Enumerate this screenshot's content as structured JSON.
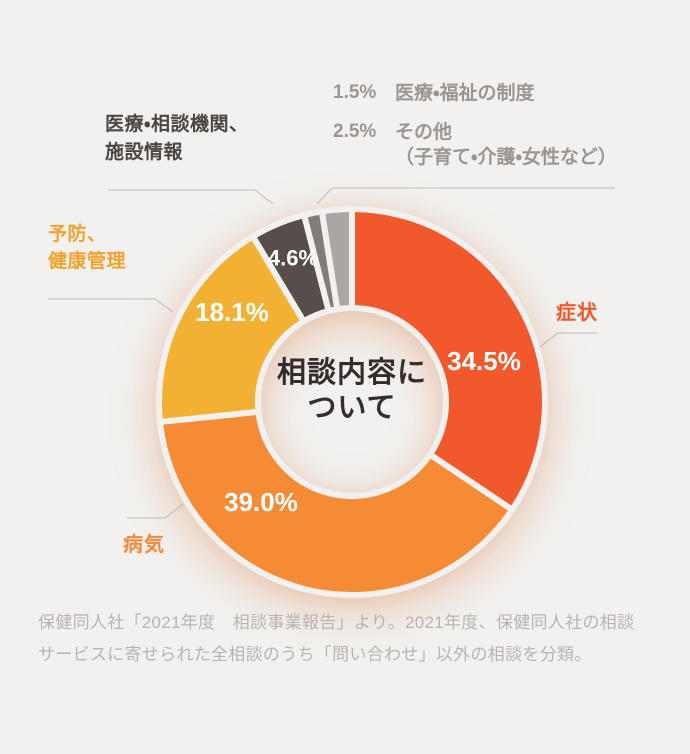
{
  "theme": {
    "background": "#f2f1ef",
    "leader_line": "#cbc7c3",
    "label_dark": "#4c4743",
    "label_gray": "#9c9693",
    "footer_text": "#b9b4b1",
    "center_text": "#332e2c",
    "value_text": "#ffffff"
  },
  "chart_data": {
    "type": "pie",
    "variant": "donut",
    "title": "相談内容について",
    "center_lines": [
      "相談内容に",
      "ついて"
    ],
    "unit": "%",
    "start_angle_deg": 0,
    "clockwise": true,
    "segments": [
      {
        "label": "症状",
        "value": 34.5,
        "display": "34.5%",
        "color": "#f1582b"
      },
      {
        "label": "病気",
        "value": 39.0,
        "display": "39.0%",
        "color": "#f58b35"
      },
      {
        "label": "予防、健康管理",
        "value": 18.1,
        "display": "18.1%",
        "color": "#f3b134"
      },
      {
        "label": "医療・相談機関、施設情報",
        "value": 4.6,
        "display": "4.6%",
        "color": "#574e4b"
      },
      {
        "label": "医療・福祉の制度",
        "value": 1.5,
        "display": "1.5%",
        "color": "#837d7a"
      },
      {
        "label": "その他（子育て・介護・女性など）",
        "value": 2.5,
        "display": "2.5%",
        "color": "#aba6a3"
      }
    ]
  },
  "callouts": {
    "shoujou": {
      "text": "症状"
    },
    "byouki": {
      "text": "病気"
    },
    "yobou": {
      "line1": "予防、",
      "line2": "健康管理"
    },
    "kikan": {
      "line1": "医療・相談機関、",
      "line2": "施設情報"
    },
    "legend": [
      {
        "pct": "1.5%",
        "text": "医療・福祉の制度",
        "sub": ""
      },
      {
        "pct": "2.5%",
        "text": "その他",
        "sub": "（子育て・介護・女性など）"
      }
    ]
  },
  "footer": {
    "line1": "保健同人社「2021年度　相談事業報告」より。2021年度、保健同人社の相談",
    "line2": "サービスに寄せられた全相談のうち「問い合わせ」以外の相談を分類。"
  }
}
